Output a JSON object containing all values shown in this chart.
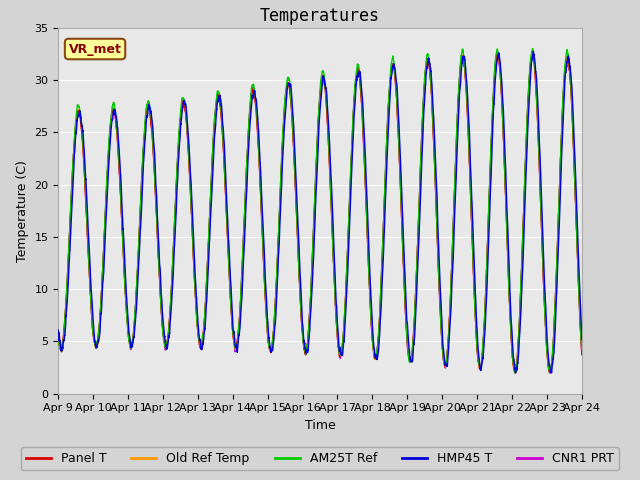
{
  "title": "Temperatures",
  "xlabel": "Time",
  "ylabel": "Temperature (C)",
  "ylim": [
    0,
    35
  ],
  "yticks": [
    0,
    5,
    10,
    15,
    20,
    25,
    30,
    35
  ],
  "start_day": 9,
  "end_day": 24,
  "n_days": 15,
  "fig_bg_color": "#d4d4d4",
  "plot_bg_color": "#e8e8e8",
  "grid_color": "#ffffff",
  "series": [
    {
      "label": "Panel T",
      "color": "#dd0000",
      "lw": 1.0,
      "zorder": 4
    },
    {
      "label": "Old Ref Temp",
      "color": "#ff9900",
      "lw": 1.0,
      "zorder": 3
    },
    {
      "label": "AM25T Ref",
      "color": "#00cc00",
      "lw": 1.0,
      "zorder": 5
    },
    {
      "label": "HMP45 T",
      "color": "#0000dd",
      "lw": 1.0,
      "zorder": 6
    },
    {
      "label": "CNR1 PRT",
      "color": "#cc00cc",
      "lw": 1.0,
      "zorder": 2
    }
  ],
  "annotation_text": "VR_met",
  "title_fontsize": 12,
  "axis_label_fontsize": 9,
  "tick_fontsize": 8,
  "legend_fontsize": 9,
  "annot_fontsize": 9
}
